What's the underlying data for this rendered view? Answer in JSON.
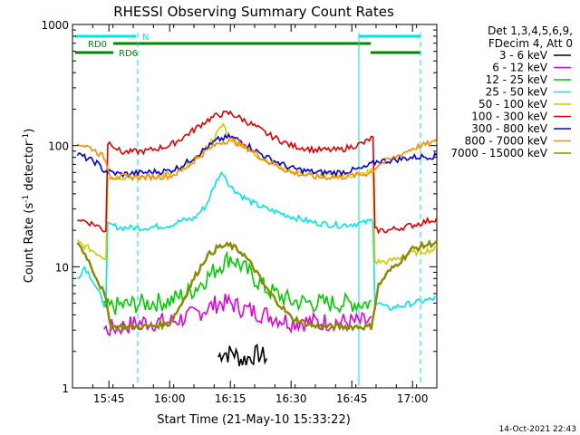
{
  "chart_data": {
    "type": "line",
    "title": "RHESSI Observing Summary Count Rates",
    "xlabel": "Start Time (21-May-10 15:33:22)",
    "ylabel": "Count Rate (s⁻¹ detector⁻¹)",
    "ylabel_parts": [
      "Count Rate (s",
      "-1",
      " detector",
      "-1",
      ")"
    ],
    "yscale": "log",
    "xlim": [
      15.6,
      17.1
    ],
    "ylim": [
      1,
      1000
    ],
    "x_ticks": [
      {
        "value": 15.75,
        "label": "15:45"
      },
      {
        "value": 16.0,
        "label": "16:00"
      },
      {
        "value": 16.25,
        "label": "16:15"
      },
      {
        "value": 16.5,
        "label": "16:30"
      },
      {
        "value": 16.75,
        "label": "16:45"
      },
      {
        "value": 17.0,
        "label": "17:00"
      }
    ],
    "y_ticks": [
      {
        "value": 1,
        "label": "1"
      },
      {
        "value": 10,
        "label": "10"
      },
      {
        "value": 100,
        "label": "100"
      },
      {
        "value": 1000,
        "label": "1000"
      }
    ],
    "legend_header": [
      "Det 1,3,4,5,6,9,",
      "FDecim 4, Att 0"
    ],
    "legend_position": "right",
    "timestamp": "14-Oct-2021 22:43",
    "flags": {
      "N": "N",
      "RD0": "RD0",
      "RD6": "RD6"
    },
    "series": [
      {
        "name": "3 - 6 keV",
        "color": "#000000",
        "x": [
          16.2,
          16.22,
          16.24,
          16.26,
          16.28,
          16.3,
          16.36,
          16.4
        ],
        "y": [
          1.8,
          2.0,
          1.9,
          2.0,
          1.8,
          1.7,
          1.9,
          1.8
        ]
      },
      {
        "name": "6 - 12 keV",
        "color": "#e000e0",
        "x": [
          15.73,
          15.8,
          15.9,
          16.0,
          16.1,
          16.15,
          16.2,
          16.25,
          16.3,
          16.4,
          16.5,
          16.6,
          16.7,
          16.8,
          16.83
        ],
        "y": [
          3.0,
          3.2,
          3.5,
          3.5,
          4.0,
          4.5,
          5.0,
          5.0,
          4.5,
          4.0,
          3.5,
          3.5,
          3.5,
          3.5,
          3.5
        ]
      },
      {
        "name": "12 - 25 keV",
        "color": "#00cc00",
        "x": [
          15.73,
          15.8,
          15.9,
          16.0,
          16.1,
          16.15,
          16.2,
          16.25,
          16.3,
          16.35,
          16.4,
          16.5,
          16.6,
          16.7,
          16.8,
          16.83
        ],
        "y": [
          4.5,
          4.8,
          5.0,
          5.2,
          6.5,
          8.0,
          10.0,
          12.0,
          10.0,
          8.0,
          6.5,
          5.2,
          5.0,
          5.0,
          5.0,
          5.0
        ]
      },
      {
        "name": "25 - 50 keV",
        "color": "#00e5e5",
        "x": [
          15.62,
          15.65,
          15.68,
          15.71,
          15.73,
          15.76,
          15.8,
          15.9,
          16.0,
          16.05,
          16.1,
          16.15,
          16.2,
          16.22,
          16.25,
          16.3,
          16.35,
          16.4,
          16.5,
          16.6,
          16.7,
          16.8,
          16.83,
          16.86,
          16.9,
          17.0,
          17.1
        ],
        "y": [
          8,
          10,
          8,
          6,
          5,
          22,
          21,
          21,
          22,
          24,
          25,
          32,
          55,
          60,
          46,
          38,
          33,
          30,
          26,
          23,
          22,
          23,
          24,
          5,
          4.5,
          5,
          5.5
        ]
      },
      {
        "name": "50 - 100 keV",
        "color": "#d4c800",
        "x": [
          15.62,
          15.7,
          15.73,
          15.76,
          15.8,
          15.9,
          16.0,
          16.05,
          16.1,
          16.15,
          16.2,
          16.22,
          16.25,
          16.3,
          16.35,
          16.4,
          16.5,
          16.6,
          16.7,
          16.8,
          16.83,
          16.86,
          16.9,
          17.0,
          17.1
        ],
        "y": [
          16,
          13,
          12,
          55,
          55,
          55,
          58,
          65,
          75,
          95,
          130,
          150,
          115,
          100,
          85,
          75,
          62,
          57,
          56,
          58,
          62,
          11,
          11,
          13,
          14
        ]
      },
      {
        "name": "100 - 300 keV",
        "color": "#e00000",
        "x": [
          15.62,
          15.7,
          15.73,
          15.76,
          15.8,
          15.9,
          16.0,
          16.05,
          16.1,
          16.15,
          16.2,
          16.25,
          16.3,
          16.35,
          16.4,
          16.5,
          16.6,
          16.7,
          16.8,
          16.83,
          16.86,
          16.9,
          17.0,
          17.1
        ],
        "y": [
          25,
          22,
          20,
          105,
          88,
          90,
          100,
          115,
          135,
          160,
          180,
          185,
          165,
          145,
          125,
          100,
          92,
          92,
          105,
          115,
          20,
          20,
          22,
          25
        ]
      },
      {
        "name": "300 - 800 keV",
        "color": "#0000dd",
        "x": [
          15.62,
          15.7,
          15.73,
          15.76,
          15.8,
          15.9,
          16.0,
          16.05,
          16.1,
          16.15,
          16.2,
          16.25,
          16.3,
          16.35,
          16.4,
          16.5,
          16.6,
          16.7,
          16.8,
          16.83,
          16.86,
          16.9,
          17.0,
          17.1
        ],
        "y": [
          85,
          72,
          62,
          60,
          58,
          60,
          62,
          68,
          80,
          95,
          112,
          118,
          108,
          92,
          80,
          65,
          60,
          60,
          65,
          70,
          75,
          75,
          80,
          82
        ]
      },
      {
        "name": "800 - 7000 keV",
        "color": "#ff8800",
        "x": [
          15.62,
          15.68,
          15.73,
          15.76,
          15.8,
          15.9,
          16.0,
          16.05,
          16.1,
          16.15,
          16.2,
          16.25,
          16.3,
          16.35,
          16.4,
          16.5,
          16.6,
          16.7,
          16.8,
          16.83,
          16.86,
          16.9,
          17.0,
          17.1
        ],
        "y": [
          105,
          95,
          80,
          55,
          55,
          55,
          56,
          62,
          75,
          90,
          105,
          112,
          100,
          88,
          75,
          60,
          55,
          55,
          58,
          60,
          70,
          75,
          95,
          108
        ]
      },
      {
        "name": "7000 - 15000 keV",
        "color": "#8b8b00",
        "x": [
          15.62,
          15.66,
          15.7,
          15.73,
          15.76,
          15.8,
          15.9,
          16.0,
          16.05,
          16.1,
          16.15,
          16.2,
          16.25,
          16.3,
          16.35,
          16.4,
          16.5,
          16.6,
          16.7,
          16.8,
          16.83,
          16.86,
          16.9,
          17.0,
          17.1
        ],
        "y": [
          16,
          12,
          8,
          6,
          3.2,
          3.2,
          3.2,
          3.4,
          5.0,
          8.0,
          12.0,
          14.5,
          15.0,
          13.0,
          9.5,
          6.5,
          3.8,
          3.2,
          3.2,
          3.2,
          3.2,
          7.0,
          9.0,
          14.0,
          16.0
        ]
      }
    ]
  }
}
